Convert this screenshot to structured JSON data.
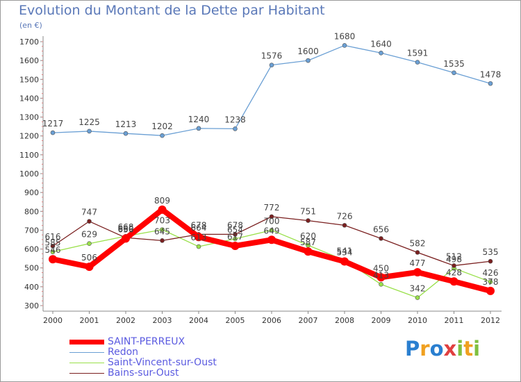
{
  "chart_data": {
    "type": "line",
    "title": "Evolution du Montant de la Dette par Habitant",
    "unit": "(en €)",
    "x": [
      "2000",
      "2001",
      "2002",
      "2003",
      "2004",
      "2005",
      "2006",
      "2007",
      "2008",
      "2009",
      "2010",
      "2011",
      "2012"
    ],
    "ylim": [
      300,
      1700
    ],
    "yticks": [
      300,
      400,
      500,
      600,
      700,
      800,
      900,
      1000,
      1100,
      1200,
      1300,
      1400,
      1500,
      1600,
      1700
    ],
    "grid": false,
    "legend_position": "bottom-left",
    "series": [
      {
        "name": "SAINT-PERREUX",
        "color": "#ff0000",
        "values": [
          546,
          506,
          656,
          809,
          664,
          617,
          649,
          587,
          534,
          450,
          477,
          428,
          378
        ],
        "labels": [
          "546",
          "506",
          "656",
          "809",
          "664",
          "617",
          "649",
          "587",
          "534",
          "450",
          "477",
          "428",
          "378"
        ]
      },
      {
        "name": "Redon",
        "color": "#6a9fd4",
        "values": [
          1217,
          1225,
          1213,
          1202,
          1240,
          1238,
          1576,
          1600,
          1680,
          1640,
          1591,
          1535,
          1478
        ],
        "labels": [
          "1217",
          "1225",
          "1213",
          "1202",
          "1240",
          "1238",
          "1576",
          "1600",
          "1680",
          "1640",
          "1591",
          "1535",
          "1478"
        ]
      },
      {
        "name": "Saint-Vincent-sur-Oust",
        "color": "#99e04a",
        "values": [
          585,
          629,
          668,
          703,
          613,
          654,
          700,
          620,
          541,
          413,
          342,
          498,
          426
        ],
        "labels": [
          "585",
          "629",
          "668",
          "703",
          "613",
          "654",
          "700",
          "620",
          "541",
          "413",
          "342",
          "498",
          "426"
        ]
      },
      {
        "name": "Bains-sur-Oust",
        "color": "#7a1f1f",
        "values": [
          616,
          747,
          660,
          645,
          678,
          678,
          772,
          751,
          726,
          656,
          582,
          512,
          535
        ],
        "labels": [
          "616",
          "747",
          "660",
          "645",
          "678",
          "678",
          "772",
          "751",
          "726",
          "656",
          "582",
          "512",
          "535"
        ]
      }
    ]
  },
  "logo": {
    "text": "Proxiti",
    "letters": [
      {
        "ch": "P",
        "color": "#2a7fd0"
      },
      {
        "ch": "r",
        "color": "#f0a020"
      },
      {
        "ch": "o",
        "color": "#2a7fd0"
      },
      {
        "ch": "x",
        "color": "#e04040"
      },
      {
        "ch": "i",
        "color": "#7fc040"
      },
      {
        "ch": "t",
        "color": "#f0a020"
      },
      {
        "ch": "i",
        "color": "#7fc040"
      }
    ]
  }
}
